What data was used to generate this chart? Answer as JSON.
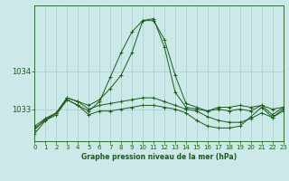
{
  "title": "Graphe pression niveau de la mer (hPa)",
  "background_color": "#cce8e8",
  "grid_color": "#aacccc",
  "line_color": "#1a5c1a",
  "hours": [
    0,
    1,
    2,
    3,
    4,
    5,
    6,
    7,
    8,
    9,
    10,
    11,
    12,
    13,
    14,
    15,
    16,
    17,
    18,
    19,
    20,
    21,
    22,
    23
  ],
  "series": [
    [
      1032.55,
      1032.75,
      1032.9,
      1033.3,
      1033.2,
      1033.1,
      1033.25,
      1033.55,
      1033.9,
      1034.5,
      1035.35,
      1035.35,
      1034.85,
      1033.9,
      1033.15,
      1033.05,
      1032.95,
      1033.05,
      1033.05,
      1033.1,
      1033.05,
      1033.1,
      1033.0,
      1033.05
    ],
    [
      1032.5,
      1032.7,
      1032.9,
      1033.25,
      1033.1,
      1032.95,
      1033.2,
      1033.85,
      1034.5,
      1035.05,
      1035.35,
      1035.4,
      1034.65,
      1033.45,
      1033.05,
      1033.0,
      1032.95,
      1033.0,
      1032.95,
      1033.0,
      1032.95,
      1033.1,
      1032.85,
      1033.05
    ],
    [
      1032.45,
      1032.75,
      1032.9,
      1033.3,
      1033.2,
      1033.0,
      1033.1,
      1033.15,
      1033.2,
      1033.25,
      1033.3,
      1033.3,
      1033.2,
      1033.1,
      1033.0,
      1032.95,
      1032.8,
      1032.7,
      1032.65,
      1032.65,
      1032.75,
      1032.9,
      1032.78,
      1032.95
    ],
    [
      1032.35,
      1032.7,
      1032.85,
      1033.25,
      1033.1,
      1032.85,
      1032.95,
      1032.95,
      1033.0,
      1033.05,
      1033.1,
      1033.1,
      1033.05,
      1033.0,
      1032.9,
      1032.7,
      1032.55,
      1032.5,
      1032.5,
      1032.55,
      1032.8,
      1033.05,
      1032.78,
      1033.0
    ]
  ],
  "ylim": [
    1032.15,
    1035.75
  ],
  "yticks": [
    1033,
    1034
  ],
  "xlim": [
    0,
    23
  ],
  "xticks": [
    0,
    1,
    2,
    3,
    4,
    5,
    6,
    7,
    8,
    9,
    10,
    11,
    12,
    13,
    14,
    15,
    16,
    17,
    18,
    19,
    20,
    21,
    22,
    23
  ],
  "xtick_labels": [
    "0",
    "1",
    "2",
    "3",
    "4",
    "5",
    "6",
    "7",
    "8",
    "9",
    "10",
    "11",
    "12",
    "13",
    "14",
    "15",
    "16",
    "17",
    "18",
    "19",
    "20",
    "21",
    "22",
    "23"
  ],
  "figsize": [
    3.2,
    2.0
  ],
  "dpi": 100
}
